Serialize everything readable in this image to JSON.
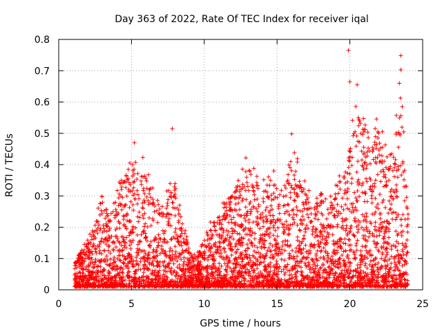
{
  "chart_data": {
    "type": "scatter",
    "title": "Day 363 of 2022, Rate Of TEC Index for receiver iqal",
    "xlabel": "GPS time / hours",
    "ylabel": "ROTI / TECUs",
    "xlim": [
      0,
      25
    ],
    "ylim": [
      0,
      0.8
    ],
    "x_ticks": [
      0,
      5,
      10,
      15,
      20,
      25
    ],
    "y_ticks": [
      0,
      0.1,
      0.2,
      0.3,
      0.4,
      0.5,
      0.6,
      0.7,
      0.8
    ],
    "x_tick_labels": [
      "0",
      "5",
      "10",
      "15",
      "20",
      "25"
    ],
    "y_tick_labels": [
      "0",
      "0.1",
      "0.2",
      "0.3",
      "0.4",
      "0.5",
      "0.6",
      "0.7",
      "0.8"
    ],
    "grid": true,
    "marker": "plus",
    "marker_color": "#ff0000",
    "x_range_of_points": [
      1.1,
      24.0
    ],
    "envelope": {
      "description_hours": [
        1.2,
        1.5,
        2.0,
        2.5,
        3.0,
        3.5,
        4.0,
        4.5,
        5.0,
        5.5,
        6.0,
        6.5,
        7.0,
        7.5,
        8.0,
        8.5,
        9.0,
        9.5,
        10.0,
        10.5,
        11.0,
        11.5,
        12.0,
        12.5,
        13.0,
        13.5,
        14.0,
        14.5,
        15.0,
        15.5,
        16.0,
        16.5,
        17.0,
        17.5,
        18.0,
        18.5,
        19.0,
        19.5,
        20.0,
        20.5,
        21.0,
        21.5,
        22.0,
        22.5,
        23.0,
        23.5,
        24.0
      ],
      "typical_max": [
        0.08,
        0.12,
        0.14,
        0.2,
        0.3,
        0.25,
        0.28,
        0.35,
        0.4,
        0.45,
        0.35,
        0.3,
        0.25,
        0.28,
        0.35,
        0.2,
        0.12,
        0.1,
        0.15,
        0.2,
        0.25,
        0.28,
        0.3,
        0.35,
        0.38,
        0.35,
        0.3,
        0.35,
        0.32,
        0.3,
        0.42,
        0.35,
        0.3,
        0.25,
        0.3,
        0.28,
        0.32,
        0.35,
        0.45,
        0.55,
        0.5,
        0.45,
        0.5,
        0.4,
        0.45,
        0.55,
        0.3
      ]
    },
    "notable_points": [
      {
        "x": 7.8,
        "y": 0.515
      },
      {
        "x": 5.2,
        "y": 0.47
      },
      {
        "x": 16.0,
        "y": 0.498
      },
      {
        "x": 19.9,
        "y": 0.765
      },
      {
        "x": 20.0,
        "y": 0.665
      },
      {
        "x": 20.5,
        "y": 0.655
      },
      {
        "x": 23.5,
        "y": 0.748
      },
      {
        "x": 23.5,
        "y": 0.703
      },
      {
        "x": 23.4,
        "y": 0.66
      },
      {
        "x": 23.6,
        "y": 0.585
      }
    ]
  }
}
